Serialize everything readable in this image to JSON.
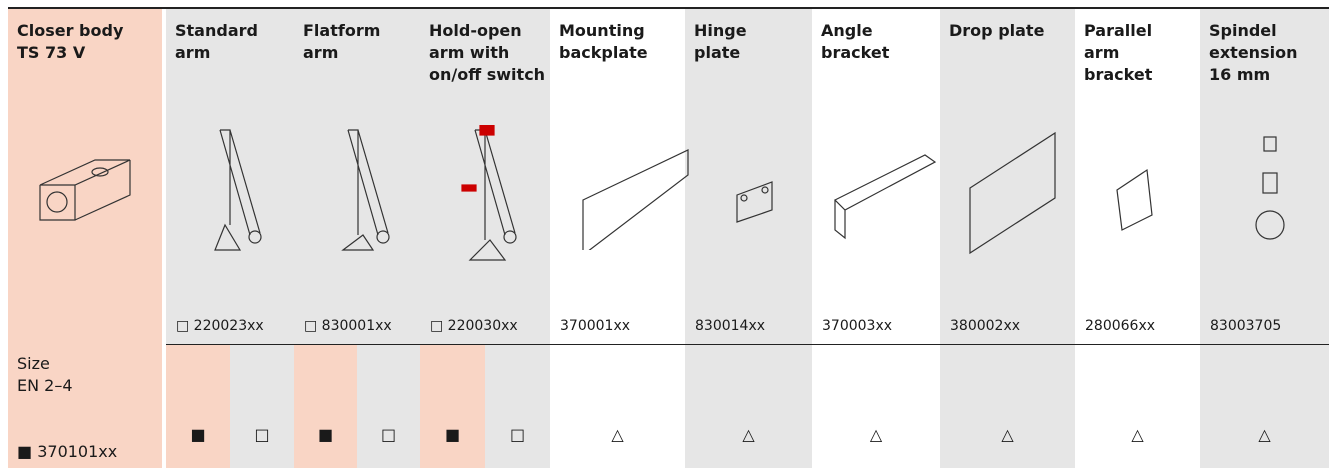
{
  "table": {
    "columns": [
      {
        "title": [
          "Closer body",
          "TS 73 V"
        ]
      },
      {
        "title": [
          "Standard",
          "arm"
        ],
        "code": "□ 220023xx"
      },
      {
        "title": [
          "Flatform",
          "arm"
        ],
        "code": "□ 830001xx"
      },
      {
        "title": [
          "Hold-open",
          "arm with",
          "on/off switch"
        ],
        "code": "□ 220030xx"
      },
      {
        "title": [
          "Mounting",
          "backplate"
        ],
        "code": "370001xx"
      },
      {
        "title": [
          "Hinge",
          "plate"
        ],
        "code": "830014xx"
      },
      {
        "title": [
          "Angle",
          "bracket"
        ],
        "code": "370003xx"
      },
      {
        "title": [
          "Drop plate"
        ],
        "code": "380002xx"
      },
      {
        "title": [
          "Parallel",
          "arm",
          "bracket"
        ],
        "code": "280066xx"
      },
      {
        "title": [
          "Spindel",
          "extension",
          "16 mm"
        ],
        "code": "83003705"
      }
    ],
    "size_row": {
      "label": [
        "Size",
        "EN 2–4"
      ],
      "code": "■ 370101xx",
      "cells": [
        "■",
        "□",
        "■",
        "□",
        "■",
        "□",
        "△",
        "△",
        "△",
        "△",
        "△",
        "△"
      ]
    }
  }
}
